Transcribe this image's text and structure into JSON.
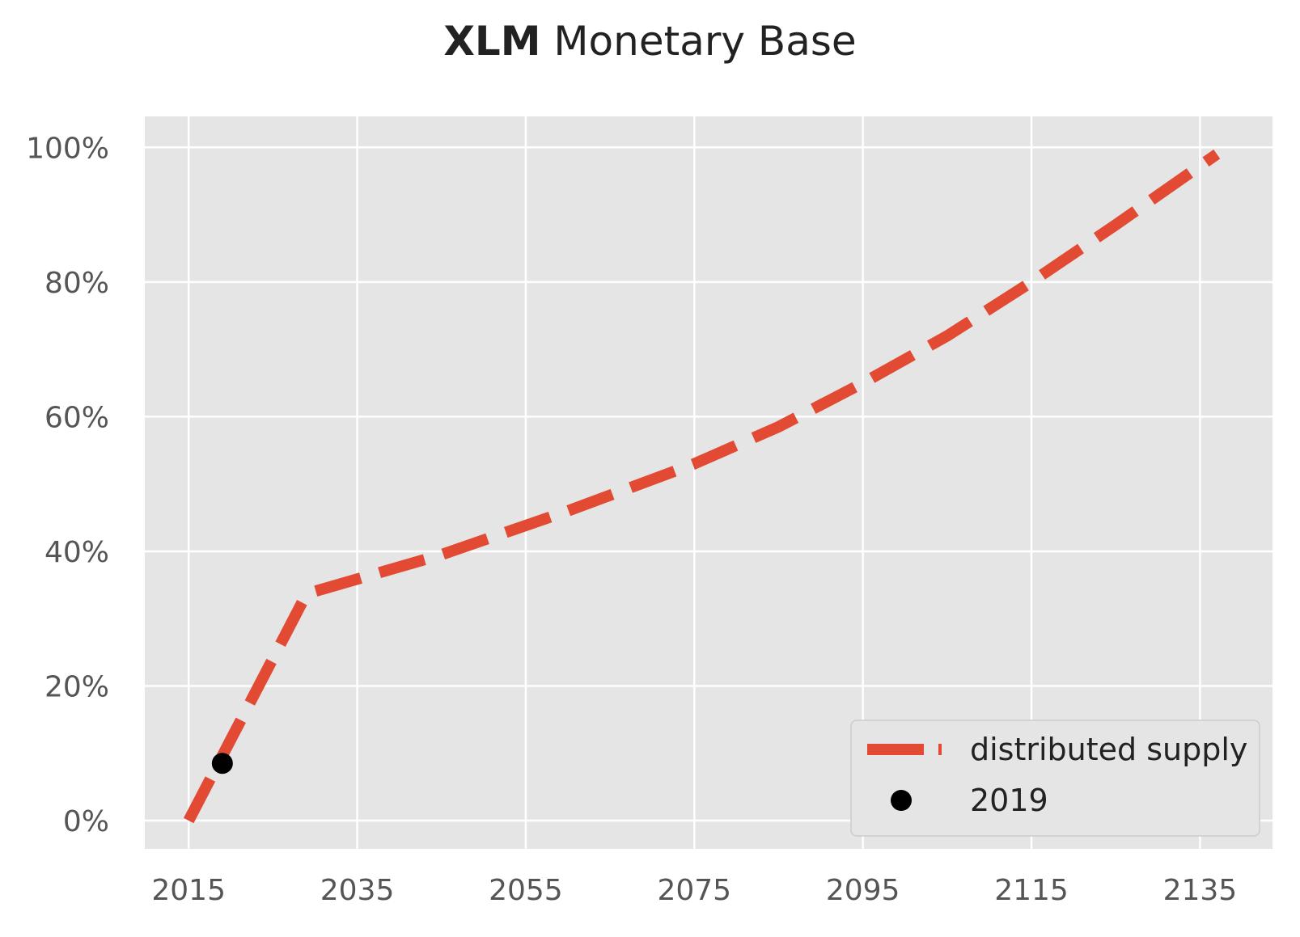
{
  "chart_data": {
    "type": "line",
    "title_bold": "XLM",
    "title_rest": "Monetary Base",
    "xlabel": "",
    "ylabel": "",
    "xlim": [
      2009.8,
      2143.6
    ],
    "ylim": [
      -4.2,
      104.6
    ],
    "x_ticks": [
      2015,
      2035,
      2055,
      2075,
      2095,
      2115,
      2135
    ],
    "y_ticks": [
      0,
      20,
      40,
      60,
      80,
      100
    ],
    "y_tick_labels": [
      "0%",
      "20%",
      "40%",
      "60%",
      "80%",
      "100%"
    ],
    "grid": true,
    "background": "#e5e5e5",
    "legend_position": "lower-right",
    "series": [
      {
        "name": "distributed supply",
        "style": "dashed",
        "color": "#e24a33",
        "x": [
          2015,
          2029,
          2045,
          2060,
          2075,
          2085,
          2095,
          2105,
          2115,
          2125,
          2137
        ],
        "y": [
          0,
          33.7,
          39.5,
          46.0,
          53.0,
          58.5,
          65.0,
          72.0,
          80.0,
          88.5,
          99.0
        ]
      },
      {
        "name": "2019",
        "style": "marker",
        "color": "#000000",
        "x": [
          2019
        ],
        "y": [
          8.5
        ]
      }
    ]
  }
}
